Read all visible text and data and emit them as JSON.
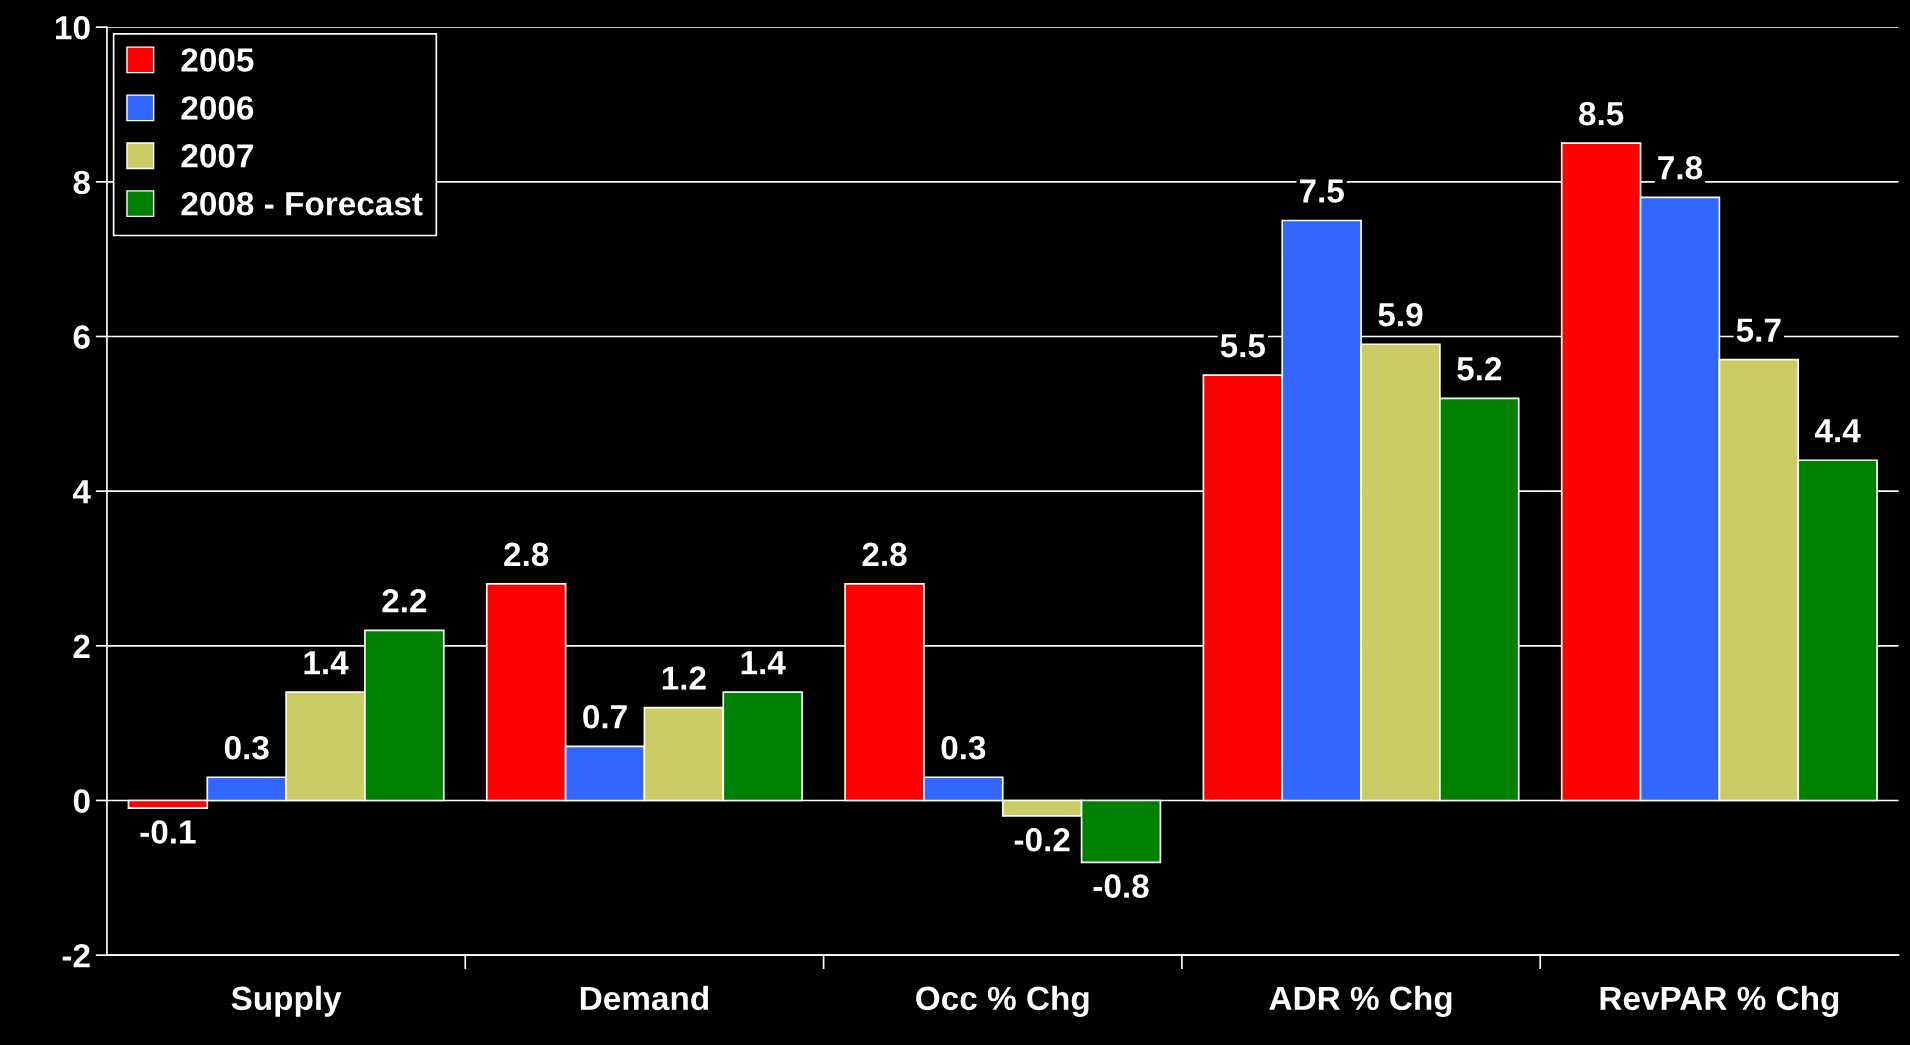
{
  "chart_data": {
    "type": "bar",
    "categories": [
      "Supply",
      "Demand",
      "Occ % Chg",
      "ADR % Chg",
      "RevPAR % Chg"
    ],
    "series": [
      {
        "name": "2005",
        "color": "#ff0000",
        "values": [
          -0.1,
          2.8,
          2.8,
          5.5,
          8.5
        ]
      },
      {
        "name": "2006",
        "color": "#3366ff",
        "values": [
          0.3,
          0.7,
          0.3,
          7.5,
          7.8
        ]
      },
      {
        "name": "2007",
        "color": "#cccc66",
        "values": [
          1.4,
          1.2,
          -0.2,
          5.9,
          5.7
        ]
      },
      {
        "name": "2008 - Forecast",
        "color": "#008000",
        "values": [
          2.2,
          1.4,
          -0.8,
          5.2,
          4.4
        ]
      }
    ],
    "ylim": [
      -2,
      10
    ],
    "yticks": [
      -2,
      0,
      2,
      4,
      6,
      8,
      10
    ],
    "grid": "y",
    "legend": "top left",
    "data_labels": true
  }
}
